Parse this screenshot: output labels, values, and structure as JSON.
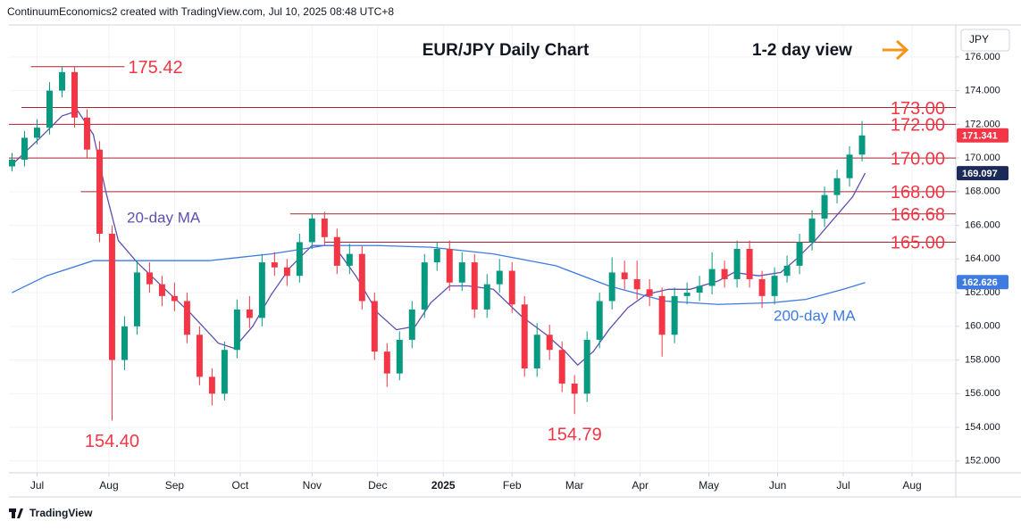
{
  "header": "ContinuumEconomics2 created with TradingView.com, Jul 10, 2025 08:48 UTC+8",
  "footer": "TradingView",
  "chart_data": {
    "type": "candlestick",
    "title": "EUR/JPY Daily Chart",
    "subtitle": "1-2 day view",
    "currency": "JPY",
    "xlim": [
      -1,
      302
    ],
    "ylim": [
      151.3,
      177.9
    ],
    "xticks": [
      {
        "value": 8,
        "label": "Jul"
      },
      {
        "value": 31,
        "label": "Aug"
      },
      {
        "value": 52,
        "label": "Sep"
      },
      {
        "value": 73,
        "label": "Oct"
      },
      {
        "value": 96,
        "label": "Nov"
      },
      {
        "value": 117,
        "label": "Dec"
      },
      {
        "value": 138,
        "label": "2025"
      },
      {
        "value": 160,
        "label": "Feb"
      },
      {
        "value": 180,
        "label": "Mar"
      },
      {
        "value": 201,
        "label": "Apr"
      },
      {
        "value": 223,
        "label": "May"
      },
      {
        "value": 245,
        "label": "Jun"
      },
      {
        "value": 266,
        "label": "Jul"
      },
      {
        "value": 288,
        "label": "Aug"
      }
    ],
    "yticks": [
      {
        "value": 152,
        "label": "152.000"
      },
      {
        "value": 154,
        "label": "154.000"
      },
      {
        "value": 156,
        "label": "156.000"
      },
      {
        "value": 158,
        "label": "158.000"
      },
      {
        "value": 160,
        "label": "160.000"
      },
      {
        "value": 162,
        "label": "162.000"
      },
      {
        "value": 164,
        "label": "164.000"
      },
      {
        "value": 166,
        "label": "166.000"
      },
      {
        "value": 168,
        "label": "168.000"
      },
      {
        "value": 170,
        "label": "170.000"
      },
      {
        "value": 172,
        "label": "172.000"
      },
      {
        "value": 174,
        "label": "174.000"
      },
      {
        "value": 176,
        "label": "176.000"
      }
    ],
    "grid": true,
    "candles": {
      "up_color": "#089981",
      "down_color": "#f23645",
      "x": [
        0,
        4,
        8,
        12,
        16,
        20,
        24,
        28,
        32,
        36,
        40,
        44,
        48,
        52,
        56,
        60,
        64,
        68,
        72,
        76,
        80,
        84,
        88,
        92,
        96,
        100,
        104,
        108,
        112,
        116,
        120,
        124,
        128,
        132,
        136,
        140,
        144,
        148,
        152,
        156,
        160,
        164,
        168,
        172,
        176,
        180,
        184,
        188,
        192,
        196,
        200,
        204,
        208,
        212,
        216,
        220,
        224,
        228,
        232,
        236,
        240,
        244,
        248,
        252,
        256,
        260,
        264,
        268,
        272
      ],
      "open": [
        169.5,
        169.9,
        171.2,
        171.8,
        174.0,
        175.1,
        172.4,
        170.5,
        165.5,
        158.0,
        160.0,
        163.2,
        162.5,
        161.8,
        161.5,
        159.5,
        157.0,
        156.0,
        158.6,
        161.0,
        160.5,
        163.8,
        163.5,
        163.0,
        165.0,
        166.4,
        165.3,
        163.6,
        164.3,
        161.5,
        158.5,
        157.2,
        159.2,
        161.0,
        163.8,
        164.6,
        162.6,
        163.8,
        161.0,
        162.5,
        163.3,
        161.3,
        157.5,
        159.5,
        158.6,
        156.6,
        156.0,
        159.2,
        161.5,
        163.2,
        162.8,
        162.2,
        161.8,
        159.5,
        161.8,
        162.0,
        162.4,
        163.4,
        162.8,
        164.6,
        162.8,
        161.8,
        163.0,
        163.6,
        165.0,
        166.4,
        167.8,
        168.8,
        170.2
      ],
      "high": [
        170.3,
        171.6,
        172.3,
        174.5,
        175.42,
        175.4,
        172.9,
        171.0,
        166.0,
        160.6,
        163.9,
        163.8,
        163.0,
        162.6,
        162.0,
        160.0,
        157.5,
        159.1,
        161.6,
        161.8,
        164.3,
        164.4,
        164.0,
        165.5,
        166.68,
        166.8,
        165.8,
        164.9,
        164.8,
        162.0,
        159.0,
        159.7,
        161.5,
        164.3,
        165.0,
        165.1,
        164.4,
        164.3,
        163.1,
        164.0,
        163.8,
        161.8,
        160.2,
        160.1,
        159.1,
        157.1,
        159.7,
        162.0,
        164.1,
        163.9,
        163.9,
        162.8,
        162.3,
        162.3,
        162.6,
        163.0,
        164.4,
        163.9,
        165.1,
        165.1,
        163.3,
        163.5,
        164.2,
        165.5,
        166.9,
        168.3,
        169.3,
        170.7,
        172.2
      ],
      "low": [
        169.2,
        169.5,
        170.8,
        171.4,
        173.6,
        171.8,
        170.0,
        165.0,
        154.4,
        157.4,
        159.5,
        162.0,
        161.2,
        160.9,
        159.0,
        156.5,
        155.3,
        155.6,
        158.1,
        159.9,
        160.0,
        163.0,
        162.4,
        162.6,
        164.6,
        164.8,
        163.1,
        163.1,
        161.0,
        158.0,
        156.4,
        156.8,
        158.7,
        160.5,
        163.3,
        162.1,
        162.1,
        160.5,
        160.5,
        162.0,
        160.8,
        157.0,
        157.0,
        158.0,
        156.1,
        154.79,
        155.5,
        158.7,
        161.0,
        162.2,
        161.6,
        161.2,
        158.2,
        159.0,
        161.3,
        161.5,
        161.9,
        162.3,
        162.3,
        162.3,
        161.1,
        161.3,
        162.6,
        163.1,
        164.5,
        165.9,
        167.3,
        168.3,
        169.8
      ],
      "close": [
        169.9,
        171.2,
        171.8,
        174.0,
        175.1,
        172.4,
        170.5,
        165.5,
        158.0,
        160.0,
        163.2,
        162.5,
        161.8,
        161.5,
        159.5,
        157.0,
        156.0,
        158.6,
        161.0,
        160.5,
        163.8,
        163.5,
        163.0,
        165.0,
        166.4,
        165.3,
        163.6,
        164.3,
        161.5,
        158.5,
        157.2,
        159.2,
        161.0,
        163.8,
        164.6,
        162.6,
        163.8,
        161.0,
        162.5,
        163.3,
        161.3,
        157.5,
        159.5,
        158.6,
        156.6,
        156.0,
        159.2,
        161.5,
        163.2,
        162.8,
        162.2,
        161.8,
        159.5,
        161.8,
        162.0,
        162.4,
        163.4,
        162.8,
        164.6,
        162.8,
        161.8,
        163.0,
        163.6,
        165.0,
        166.4,
        167.8,
        168.8,
        170.2,
        171.34
      ]
    },
    "series": [
      {
        "name": "20-day MA",
        "color": "#5e4fb0",
        "x": [
          0,
          9,
          16,
          21,
          26,
          30,
          34,
          40,
          49,
          57,
          66,
          71,
          77,
          83,
          89,
          96,
          103,
          110,
          117,
          123,
          129,
          134,
          140,
          146,
          154,
          163,
          171,
          177,
          181,
          186,
          191,
          197,
          203,
          210,
          217,
          226,
          231,
          239,
          246,
          251,
          257,
          263,
          269,
          273
        ],
        "values": [
          169.6,
          171.2,
          172.5,
          172.8,
          171.4,
          168.0,
          165.1,
          163.8,
          162.2,
          160.8,
          159.0,
          158.7,
          160.0,
          161.9,
          163.5,
          164.8,
          164.8,
          163.0,
          160.8,
          159.8,
          160.0,
          161.4,
          162.4,
          162.4,
          162.2,
          160.6,
          159.5,
          158.5,
          157.7,
          158.5,
          159.8,
          161.1,
          161.9,
          162.2,
          162.2,
          162.7,
          163.2,
          163.0,
          163.2,
          164.0,
          165.1,
          166.4,
          167.7,
          169.1
        ]
      },
      {
        "name": "200-day MA",
        "color": "#3d7be0",
        "x": [
          0,
          11,
          26,
          40,
          63,
          83,
          100,
          117,
          134,
          154,
          174,
          191,
          209,
          226,
          243,
          254,
          266,
          273
        ],
        "values": [
          162.0,
          163.0,
          163.9,
          163.9,
          163.9,
          164.3,
          164.8,
          164.8,
          164.7,
          164.3,
          163.6,
          162.4,
          161.5,
          161.3,
          161.4,
          161.6,
          162.2,
          162.6
        ]
      }
    ],
    "levels": [
      {
        "value": 175.42,
        "label": "175.42",
        "from": 6,
        "to": 36
      },
      {
        "value": 173,
        "label": "173.00",
        "from": 3
      },
      {
        "value": 172,
        "label": "172.00",
        "from": -1
      },
      {
        "value": 170,
        "label": "170.00",
        "from": -1
      },
      {
        "value": 168,
        "label": "168.00",
        "from": 22
      },
      {
        "value": 166.68,
        "label": "166.68",
        "from": 89
      },
      {
        "value": 165,
        "label": "165.00",
        "from": 100
      }
    ],
    "annotations": [
      {
        "text": "154.40",
        "x": 32,
        "y": 154.4
      },
      {
        "text": "154.79",
        "x": 180,
        "y": 154.79
      }
    ],
    "price_tags": [
      {
        "value": 171.341,
        "color": "#f23645"
      },
      {
        "value": 169.097,
        "color": "#1c2a5a"
      },
      {
        "value": 162.626,
        "color": "#3d7be0"
      }
    ]
  }
}
